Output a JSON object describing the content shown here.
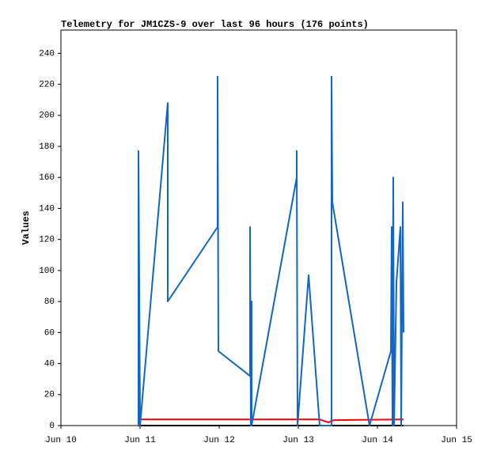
{
  "chart_data": {
    "type": "line",
    "title": "Telemetry for JM1CZS-9 over last 96 hours (176 points)",
    "y_label": "Values",
    "xlim": [
      10,
      15
    ],
    "xticks": [
      {
        "value": 10,
        "label": "Jun 10"
      },
      {
        "value": 11,
        "label": "Jun 11"
      },
      {
        "value": 12,
        "label": "Jun 12"
      },
      {
        "value": 13,
        "label": "Jun 13"
      },
      {
        "value": 14,
        "label": "Jun 14"
      },
      {
        "value": 15,
        "label": "Jun 15"
      }
    ],
    "ylim": [
      0,
      255
    ],
    "yticks": [
      0,
      20,
      40,
      60,
      80,
      100,
      120,
      140,
      160,
      180,
      200,
      220,
      240
    ],
    "grid": false,
    "series": [
      {
        "color": "#000000",
        "x": [
          10.98,
          14.33
        ],
        "values": [
          0,
          0
        ]
      },
      {
        "color": "#ff0000",
        "x": [
          10.98,
          13.27,
          13.38,
          13.45,
          14.33
        ],
        "values": [
          4,
          4,
          2,
          3.5,
          4
        ]
      },
      {
        "color": "#1466c6",
        "x": [
          10.98,
          10.98,
          11.0,
          11.35,
          11.35,
          11.98,
          11.98,
          11.99,
          12.39,
          12.39,
          12.4,
          12.41,
          12.41,
          12.98,
          12.98,
          12.99,
          13.13,
          13.27,
          13.42,
          13.42,
          13.43,
          13.9,
          14.17,
          14.18,
          14.19,
          14.2,
          14.21,
          14.24,
          14.29,
          14.3,
          14.32,
          14.33
        ],
        "values": [
          0,
          177,
          0,
          208,
          80,
          128,
          225,
          48,
          32,
          128,
          0,
          80,
          0,
          160,
          177,
          0,
          97,
          0,
          0,
          225,
          144,
          0,
          48,
          128,
          0,
          160,
          0,
          92,
          128,
          0,
          144,
          60
        ]
      }
    ]
  }
}
